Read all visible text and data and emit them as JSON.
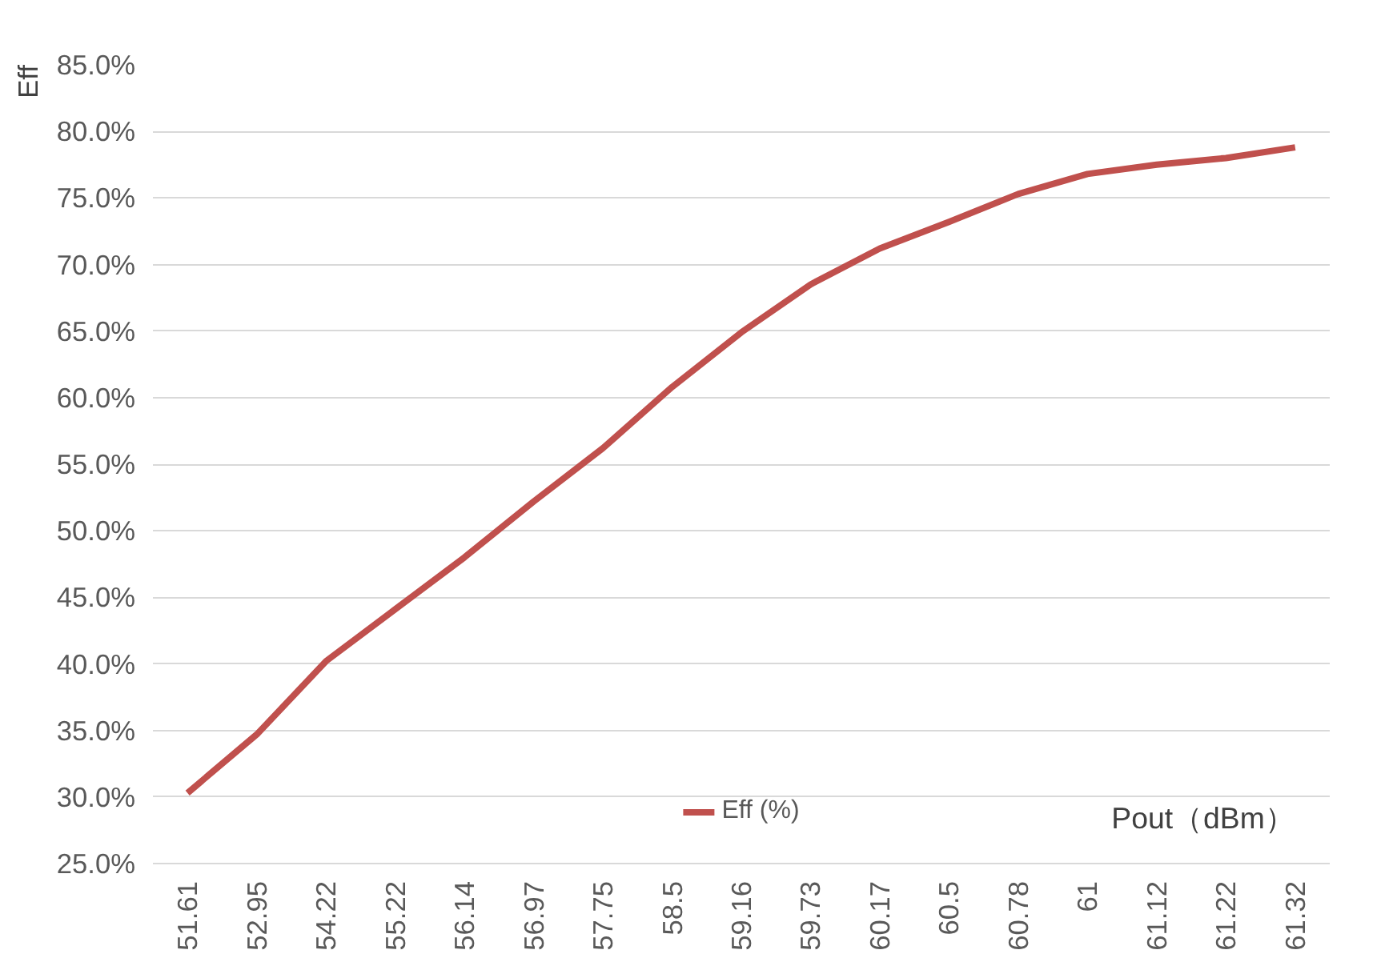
{
  "chart_data": {
    "type": "line",
    "xlabel": "Pout（dBm）",
    "ylabel": "Eff",
    "categories": [
      "51.61",
      "52.95",
      "54.22",
      "55.22",
      "56.14",
      "56.97",
      "57.75",
      "58.5",
      "59.16",
      "59.73",
      "60.17",
      "60.5",
      "60.78",
      "61",
      "61.12",
      "61.22",
      "61.32"
    ],
    "series": [
      {
        "name": "Eff (%)",
        "color": "#c0504d",
        "values": [
          30.3,
          34.7,
          40.2,
          44.1,
          48.0,
          52.2,
          56.2,
          60.8,
          64.9,
          68.5,
          71.2,
          73.2,
          75.3,
          76.8,
          77.5,
          78.0,
          78.8
        ]
      }
    ],
    "ylim": [
      25,
      85
    ],
    "yticks": [
      {
        "value": 25,
        "label": "25.0%"
      },
      {
        "value": 30,
        "label": "30.0%"
      },
      {
        "value": 35,
        "label": "35.0%"
      },
      {
        "value": 40,
        "label": "40.0%"
      },
      {
        "value": 45,
        "label": "45.0%"
      },
      {
        "value": 50,
        "label": "50.0%"
      },
      {
        "value": 55,
        "label": "55.0%"
      },
      {
        "value": 60,
        "label": "60.0%"
      },
      {
        "value": 65,
        "label": "65.0%"
      },
      {
        "value": 70,
        "label": "70.0%"
      },
      {
        "value": 75,
        "label": "75.0%"
      },
      {
        "value": 80,
        "label": "80.0%"
      },
      {
        "value": 85,
        "label": "85.0%"
      }
    ],
    "grid": "y",
    "legend": "bottom",
    "marker": "none",
    "line_style": "solid"
  }
}
